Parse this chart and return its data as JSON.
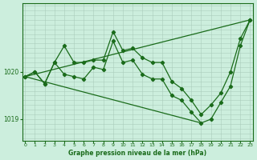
{
  "title": "Graphe pression niveau de la mer (hPa)",
  "bg": "#cceedd",
  "grid_v_color": "#bbcccc",
  "grid_h_color": "#aaccbb",
  "line_color": "#1a6b1a",
  "xlim": [
    -0.3,
    23.3
  ],
  "ylim": [
    1018.55,
    1021.45
  ],
  "ytick_vals": [
    1019.0,
    1020.0
  ],
  "xtick_vals": [
    0,
    1,
    2,
    3,
    4,
    5,
    6,
    7,
    8,
    9,
    10,
    11,
    12,
    13,
    14,
    15,
    16,
    17,
    18,
    19,
    20,
    21,
    22,
    23
  ],
  "s1_x": [
    0,
    1,
    2,
    3,
    4,
    5,
    6,
    7,
    8,
    9,
    10,
    11,
    12,
    13,
    14,
    15,
    16,
    17,
    18,
    19,
    20,
    21,
    22,
    23
  ],
  "s1_y": [
    1019.9,
    1020.0,
    1019.75,
    1020.2,
    1020.55,
    1020.2,
    1020.2,
    1020.25,
    1020.25,
    1020.85,
    1020.45,
    1020.5,
    1020.3,
    1020.2,
    1020.2,
    1019.8,
    1019.65,
    1019.4,
    1019.1,
    1019.3,
    1019.55,
    1020.0,
    1020.7,
    1021.1
  ],
  "s2_x": [
    0,
    1,
    2,
    3,
    4,
    5,
    6,
    7,
    8,
    9,
    10,
    11,
    12,
    13,
    14,
    15,
    16,
    17,
    18,
    19,
    20,
    21,
    22,
    23
  ],
  "s2_y": [
    1019.9,
    1020.0,
    1019.75,
    1020.2,
    1019.95,
    1019.9,
    1019.85,
    1020.1,
    1020.05,
    1020.65,
    1020.2,
    1020.25,
    1019.95,
    1019.85,
    1019.85,
    1019.5,
    1019.4,
    1019.15,
    1018.92,
    1019.0,
    1019.35,
    1019.7,
    1020.55,
    1021.1
  ],
  "trend1_x": [
    0,
    23
  ],
  "trend1_y": [
    1019.9,
    1021.1
  ],
  "trend2_x": [
    0,
    18
  ],
  "trend2_y": [
    1019.9,
    1018.92
  ]
}
